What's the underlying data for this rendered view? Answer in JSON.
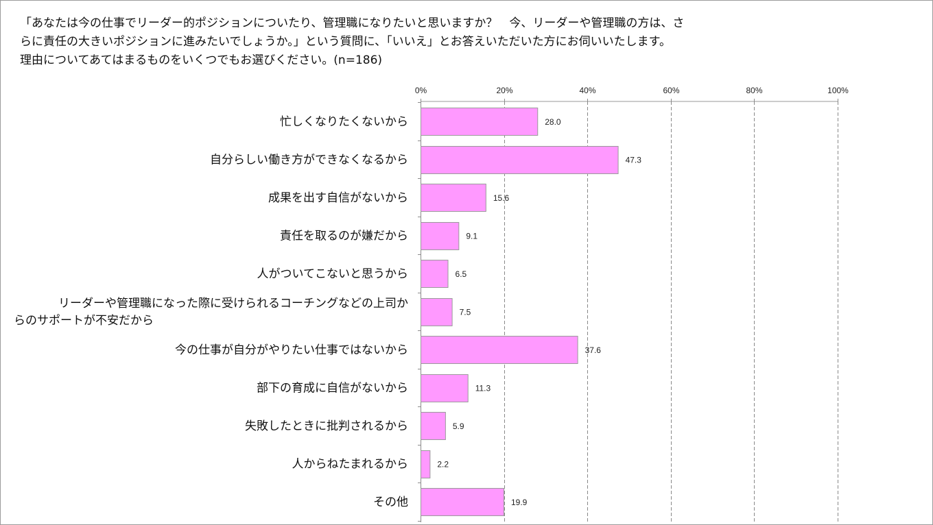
{
  "question": "「あなたは今の仕事でリーダー的ポジションについたり、管理職になりたいと思いますか？　今、リーダーや管理職の方は、さ\nらに責任の大きいポジションに進みたいでしょうか。」という質問に、「いいえ」とお答えいただいた方にお伺いいたします。\n理由についてあてはまるものをいくつでもお選びください。(n=186)",
  "chart_data": {
    "type": "bar",
    "orientation": "horizontal",
    "title": "",
    "xlabel": "",
    "ylabel": "",
    "xlim": [
      0,
      100
    ],
    "x_ticks": [
      "0%",
      "20%",
      "40%",
      "60%",
      "80%",
      "100%"
    ],
    "x_tick_values": [
      0,
      20,
      40,
      60,
      80,
      100
    ],
    "grid": "vertical dashed",
    "categories": [
      [
        "忙しくなりたくないから"
      ],
      [
        "自分らしい働き方ができなくなるから"
      ],
      [
        "成果を出す自信がないから"
      ],
      [
        "責任を取るのが嫌だから"
      ],
      [
        "人がついてこないと思うから"
      ],
      [
        "リーダーや管理職になった際に受けられるコーチングなどの上司か",
        "らのサポートが不安だから"
      ],
      [
        "今の仕事が自分がやりたい仕事ではないから"
      ],
      [
        "部下の育成に自信がないから"
      ],
      [
        "失敗したときに批判されるから"
      ],
      [
        "人からねたまれるから"
      ],
      [
        "その他"
      ]
    ],
    "values": [
      28.0,
      47.3,
      15.6,
      9.1,
      6.5,
      7.5,
      37.6,
      11.3,
      5.9,
      2.2,
      19.9
    ],
    "value_labels": [
      "28.0",
      "47.3",
      "15.6",
      "9.1",
      "6.5",
      "7.5",
      "37.6",
      "11.3",
      "5.9",
      "2.2",
      "19.9"
    ],
    "bar_color": "#ff99ff",
    "bar_stroke": "#9a9a9a",
    "grid_color": "#888888"
  }
}
